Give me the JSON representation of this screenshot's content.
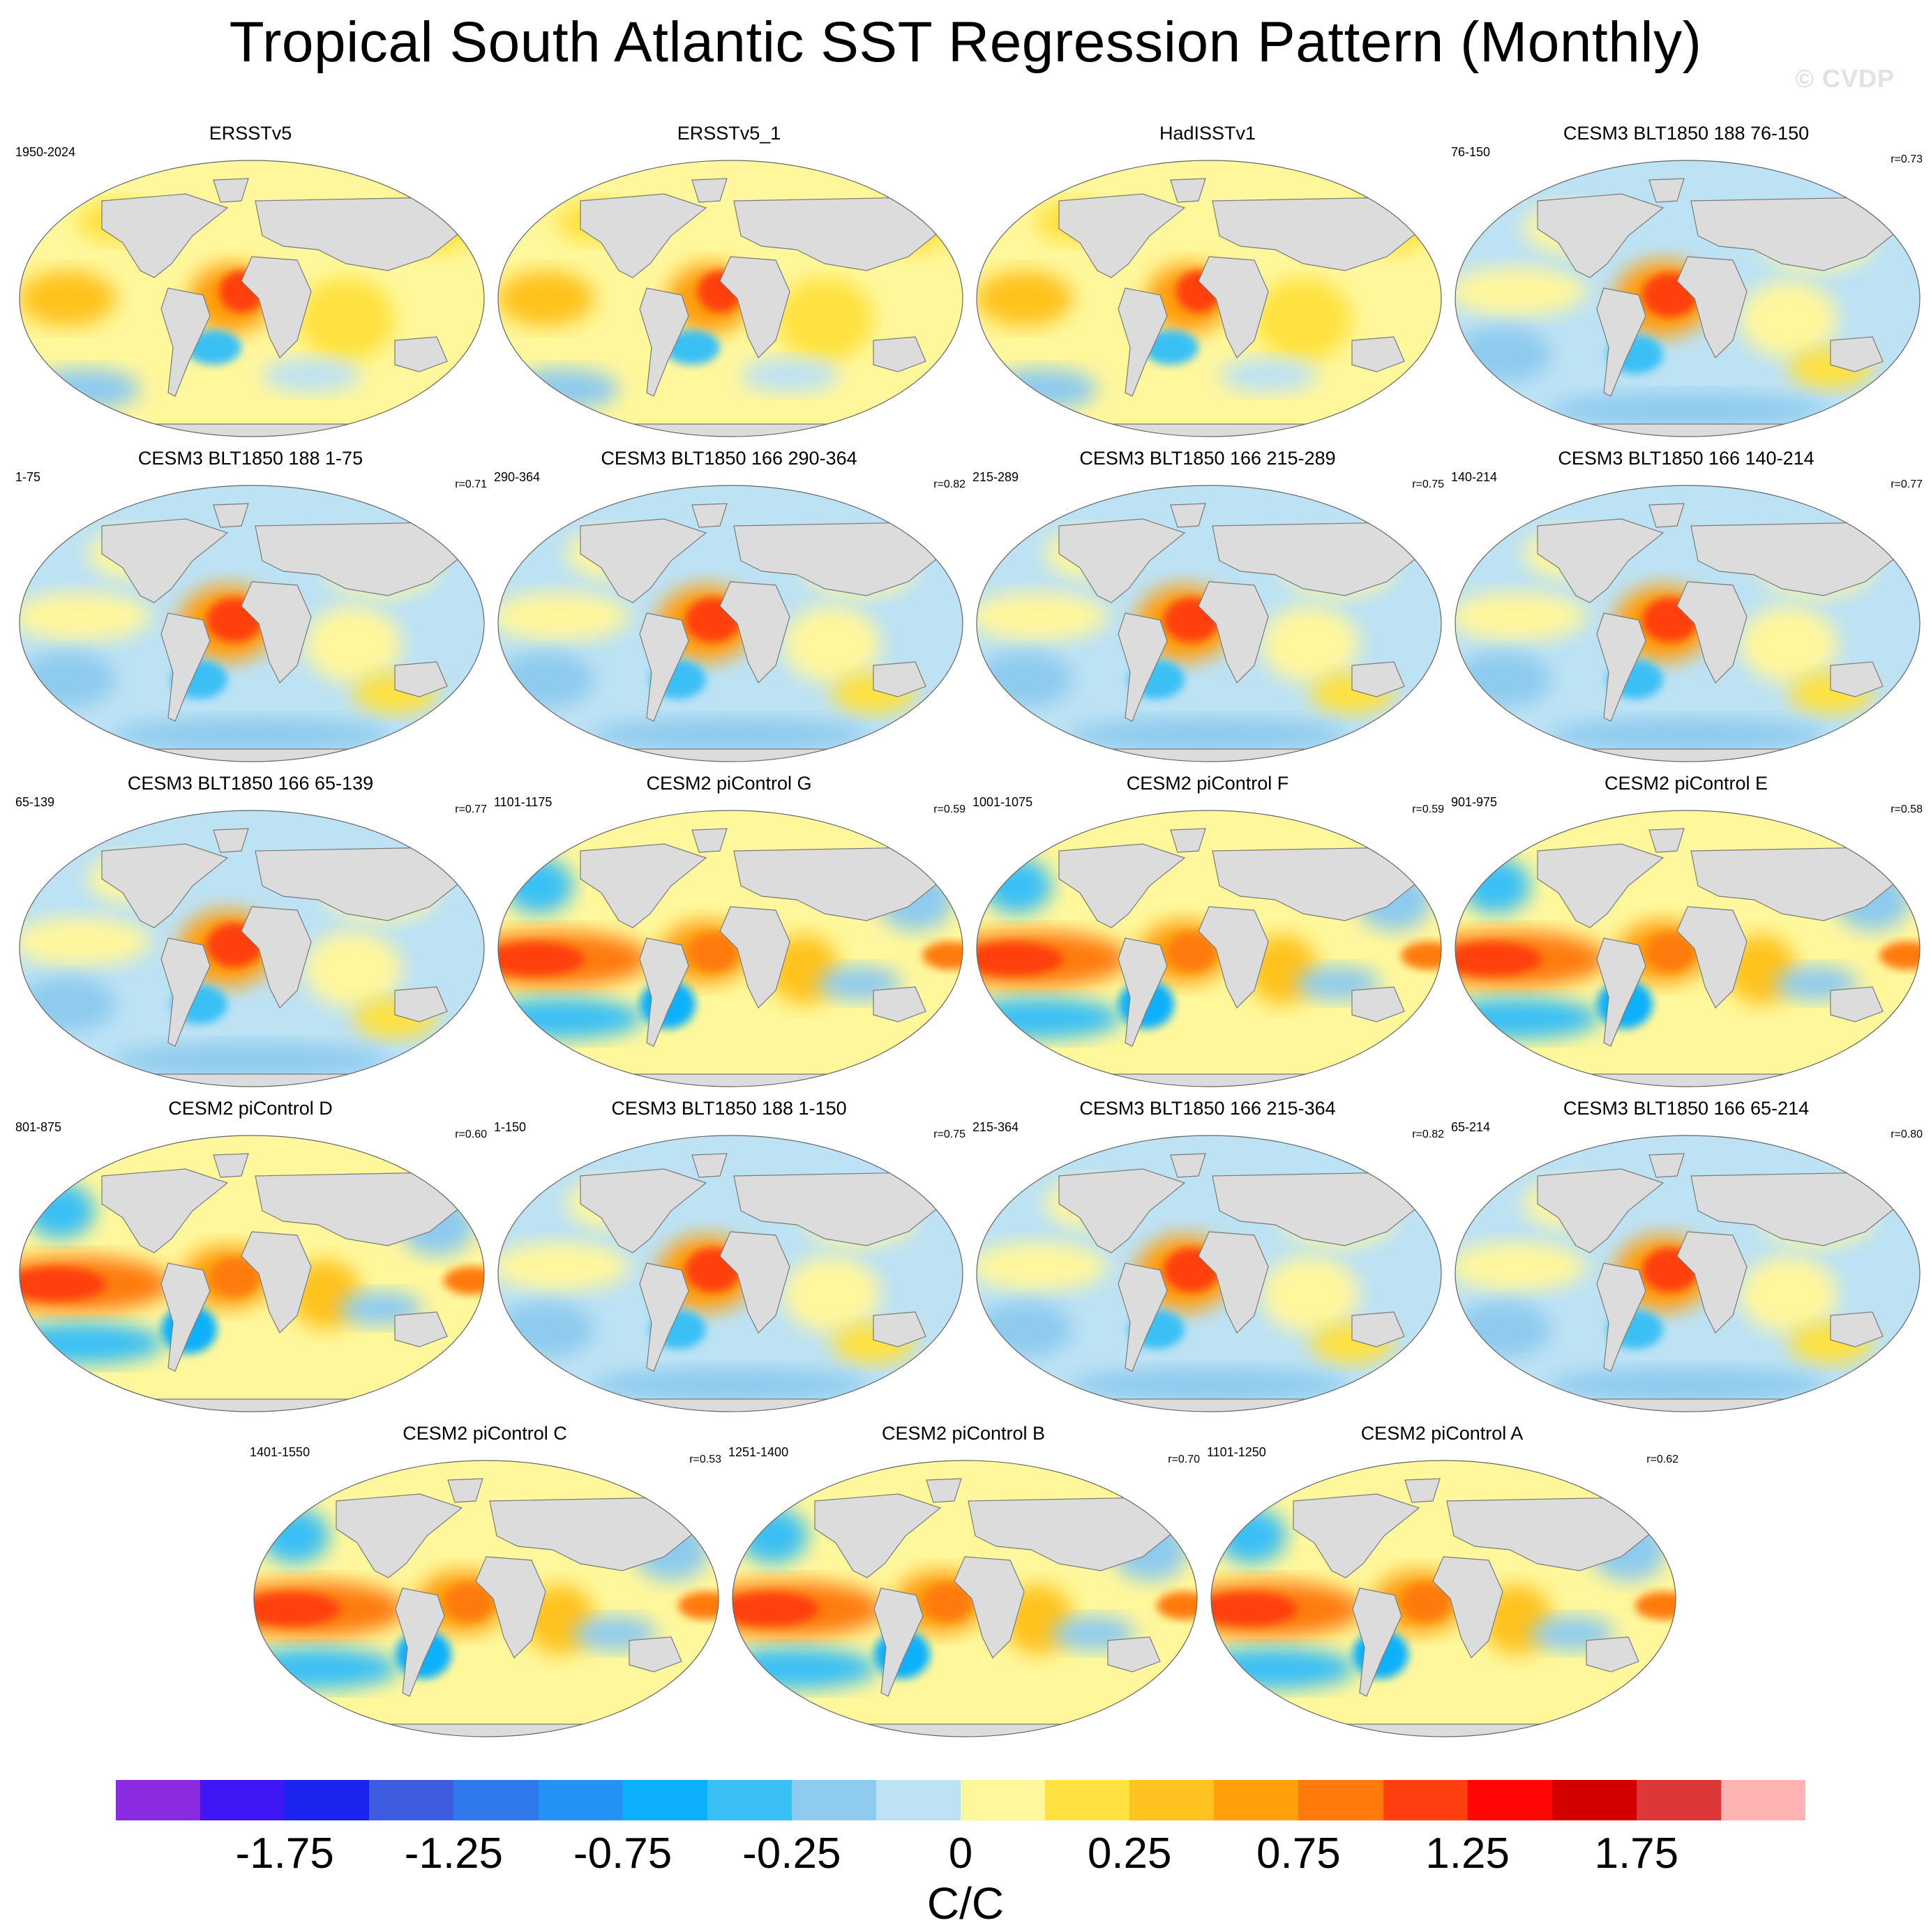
{
  "title": "Tropical South Atlantic SST Regression Pattern (Monthly)",
  "watermark": "© CVDP",
  "units": "C/C",
  "colorbar": {
    "colors": [
      "#8a2be2",
      "#3f16f5",
      "#1a24ee",
      "#3e5ce0",
      "#2f79ec",
      "#2593f5",
      "#0cb0fa",
      "#3bc0f5",
      "#8ecbee",
      "#bde2f4",
      "#fff79c",
      "#ffe240",
      "#ffc21e",
      "#ff9f0a",
      "#ff7a0a",
      "#ff3f0f",
      "#ff0505",
      "#d40000",
      "#dd3838",
      "#ffb3b3"
    ],
    "labels": [
      "-1.75",
      "-1.25",
      "-0.75",
      "-0.25",
      "0",
      "0.25",
      "0.75",
      "1.25",
      "1.75"
    ]
  },
  "panels": [
    {
      "title": "ERSSTv5",
      "left": "1950-2024",
      "right": "",
      "type": "obs1"
    },
    {
      "title": "ERSSTv5_1",
      "left": "",
      "right": "",
      "type": "obs1"
    },
    {
      "title": "HadISSTv1",
      "left": "",
      "right": "",
      "type": "obs2"
    },
    {
      "title": "CESM3 BLT1850 188 76-150",
      "left": "76-150",
      "right": "r=0.73",
      "type": "cesm3"
    },
    {
      "title": "CESM3 BLT1850 188 1-75",
      "left": "1-75",
      "right": "r=0.71",
      "type": "cesm3"
    },
    {
      "title": "CESM3 BLT1850 166 290-364",
      "left": "290-364",
      "right": "r=0.82",
      "type": "cesm3"
    },
    {
      "title": "CESM3 BLT1850 166 215-289",
      "left": "215-289",
      "right": "r=0.75",
      "type": "cesm3"
    },
    {
      "title": "CESM3 BLT1850 166 140-214",
      "left": "140-214",
      "right": "r=0.77",
      "type": "cesm3"
    },
    {
      "title": "CESM3 BLT1850 166 65-139",
      "left": "65-139",
      "right": "r=0.77",
      "type": "cesm3"
    },
    {
      "title": "CESM2 piControl G",
      "left": "1101-1175",
      "right": "r=0.59",
      "type": "cesm2"
    },
    {
      "title": "CESM2 piControl F",
      "left": "1001-1075",
      "right": "r=0.59",
      "type": "cesm2"
    },
    {
      "title": "CESM2 piControl E",
      "left": "901-975",
      "right": "r=0.58",
      "type": "cesm2"
    },
    {
      "title": "CESM2 piControl D",
      "left": "801-875",
      "right": "r=0.60",
      "type": "cesm2"
    },
    {
      "title": "CESM3 BLT1850 188 1-150",
      "left": "1-150",
      "right": "r=0.75",
      "type": "cesm3"
    },
    {
      "title": "CESM3 BLT1850 166 215-364",
      "left": "215-364",
      "right": "r=0.82",
      "type": "cesm3"
    },
    {
      "title": "CESM3 BLT1850 166 65-214",
      "left": "65-214",
      "right": "r=0.80",
      "type": "cesm3"
    },
    {
      "title": "CESM2 piControl C",
      "left": "1401-1550",
      "right": "r=0.53",
      "type": "cesm2"
    },
    {
      "title": "CESM2 piControl B",
      "left": "1251-1400",
      "right": "r=0.70",
      "type": "cesm2"
    },
    {
      "title": "CESM2 piControl A",
      "left": "1101-1250",
      "right": "r=0.62",
      "type": "cesm2"
    }
  ]
}
